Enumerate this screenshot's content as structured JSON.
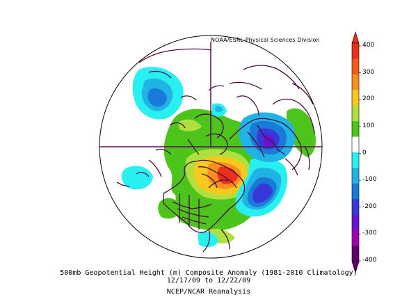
{
  "credit": "NOAA/ESRL Physical Sciences Division",
  "caption": {
    "line1": "500mb Geopotential Height (m) Composite Anomaly (1981-2010 Climatology)",
    "line2": "12/17/09  to 12/22/09",
    "line3": "NCEP/NCAR Reanalysis"
  },
  "colorbar": {
    "labels": [
      "400",
      "300",
      "200",
      "100",
      "0",
      "-100",
      "-200",
      "-300",
      "-400"
    ],
    "colors": [
      "#e8301c",
      "#f45a18",
      "#f89020",
      "#f8c81c",
      "#b0e040",
      "#4cc41c",
      "#ffffff",
      "#28f0f0",
      "#20b4e6",
      "#1a7ad8",
      "#3838d8",
      "#6a14d0",
      "#a000b0",
      "#60006a"
    ]
  },
  "anomaly_colors": {
    "green": "#4cc41c",
    "light_green": "#b0e040",
    "yellow": "#f8c81c",
    "orange": "#f89020",
    "red": "#e8301c",
    "cyan": "#28f0f0",
    "light_blue": "#20b4e6",
    "blue": "#1a7ad8",
    "dark_blue": "#3838d8",
    "purple": "#6a14d0",
    "coastline": "#4a0a40"
  }
}
